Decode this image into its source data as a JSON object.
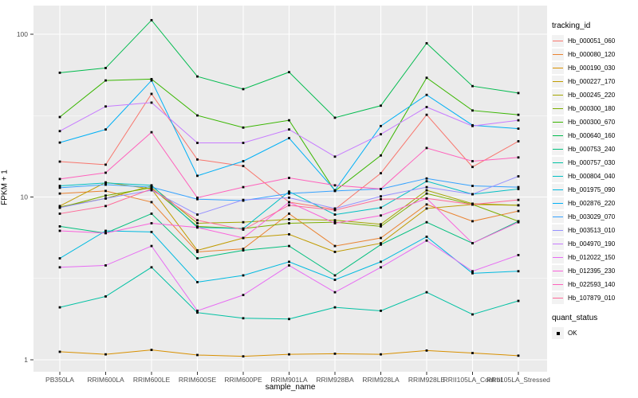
{
  "axes": {
    "y_label": "FPKM + 1",
    "x_label": "sample_name",
    "y_tick_labels": [
      "100",
      "10",
      "1"
    ],
    "y_tick_values": [
      100,
      10,
      1
    ],
    "y_minor_values": [
      3.1623,
      31.623
    ],
    "panel_bg": "#EBEBEB",
    "grid_color": "#FFFFFF",
    "tick_text_color": "#4D4D4D"
  },
  "legend": {
    "tracking_title": "tracking_id",
    "quant_title": "quant_status",
    "quant_ok_label": "OK",
    "quant_ok_shape": "filled-square",
    "quant_ok_color": "#000000"
  },
  "chart_data": {
    "type": "line",
    "title": "",
    "xlabel": "sample_name",
    "ylabel": "FPKM + 1",
    "y_scale": "log10",
    "ylim": [
      0.84,
      150
    ],
    "grid": true,
    "legend_position": "right",
    "point_shape": "filled-square",
    "point_color": "#000000",
    "quant_status_all": "OK",
    "categories": [
      "PB350LA",
      "RRIM600LA",
      "RRIM600LE",
      "RRIM600SE",
      "RRIM600PE",
      "RRIM901LA",
      "RRIM928BA",
      "RRIM928LA",
      "RRIM928LE",
      "RRII105LA_Control",
      "RRII105LA_Stressed"
    ],
    "series": [
      {
        "name": "Hb_000051_060",
        "color": "#F8766D",
        "values": [
          16.5,
          15.8,
          43,
          17,
          15.5,
          9.3,
          8.4,
          14,
          32,
          15.3,
          22
        ]
      },
      {
        "name": "Hb_000080_120",
        "color": "#EA8331",
        "values": [
          10.5,
          10.9,
          9.3,
          4.6,
          4.8,
          7.9,
          5.0,
          5.6,
          9.0,
          7.1,
          8.2
        ]
      },
      {
        "name": "Hb_000190_030",
        "color": "#D89000",
        "values": [
          1.12,
          1.08,
          1.15,
          1.07,
          1.05,
          1.08,
          1.09,
          1.08,
          1.14,
          1.1,
          1.06
        ]
      },
      {
        "name": "Hb_000227_170",
        "color": "#C09B00",
        "values": [
          8.8,
          12.3,
          11.2,
          4.7,
          5.6,
          5.9,
          4.6,
          5.2,
          8.5,
          9.0,
          8.9
        ]
      },
      {
        "name": "Hb_000245_220",
        "color": "#A3A500",
        "values": [
          8.7,
          9.8,
          11.7,
          6.9,
          7.0,
          7.3,
          7.2,
          6.8,
          11.0,
          9.1,
          8.9
        ]
      },
      {
        "name": "Hb_000300_180",
        "color": "#7CAE00",
        "values": [
          8.6,
          10.2,
          11.4,
          6.6,
          6.4,
          6.9,
          7.0,
          6.6,
          10.5,
          9.0,
          7.1
        ]
      },
      {
        "name": "Hb_000300_670",
        "color": "#39B600",
        "values": [
          31,
          52,
          53,
          31.7,
          26.7,
          29.6,
          10.9,
          18,
          54,
          34,
          32
        ]
      },
      {
        "name": "Hb_000640_160",
        "color": "#00BB4E",
        "values": [
          58,
          62,
          122,
          55,
          46,
          58.5,
          30.7,
          36.4,
          88,
          48,
          43.5
        ]
      },
      {
        "name": "Hb_000753_240",
        "color": "#00BF7D",
        "values": [
          6.6,
          6.0,
          7.9,
          4.2,
          4.7,
          5.0,
          3.3,
          5.1,
          7.0,
          5.2,
          7.1
        ]
      },
      {
        "name": "Hb_000757_030",
        "color": "#00C1A3",
        "values": [
          2.1,
          2.45,
          3.7,
          1.95,
          1.8,
          1.78,
          2.1,
          2.0,
          2.6,
          1.9,
          2.3
        ]
      },
      {
        "name": "Hb_000804_040",
        "color": "#00BFC4",
        "values": [
          11.7,
          12.2,
          11.8,
          6.5,
          6.4,
          10.8,
          7.8,
          8.6,
          12.5,
          10.4,
          11.2
        ]
      },
      {
        "name": "Hb_001975_090",
        "color": "#00BAE0",
        "values": [
          4.2,
          6.2,
          6.1,
          3.0,
          3.3,
          4.0,
          3.1,
          4.0,
          5.7,
          3.4,
          3.5
        ]
      },
      {
        "name": "Hb_002876_220",
        "color": "#00B0F6",
        "values": [
          21.6,
          26,
          52,
          13.5,
          16.6,
          23,
          11,
          27.3,
          42.4,
          27.6,
          26.3
        ]
      },
      {
        "name": "Hb_003029_070",
        "color": "#35A2FF",
        "values": [
          11.4,
          11.9,
          11.5,
          9.7,
          9.5,
          10.5,
          10.9,
          11.2,
          13.0,
          11.7,
          11.5
        ]
      },
      {
        "name": "Hb_003513_010",
        "color": "#9590FF",
        "values": [
          8.6,
          9.8,
          11.0,
          7.8,
          9.6,
          9.9,
          8.5,
          10.1,
          11.5,
          10.4,
          13.4
        ]
      },
      {
        "name": "Hb_004970_190",
        "color": "#C77CFF",
        "values": [
          25.4,
          36,
          38,
          21.5,
          21.5,
          26,
          17.7,
          24.3,
          35.7,
          27.3,
          29.6
        ]
      },
      {
        "name": "Hb_012022_150",
        "color": "#E76BF3",
        "values": [
          3.7,
          3.8,
          5.0,
          2.0,
          2.5,
          3.8,
          2.6,
          3.7,
          5.4,
          3.5,
          4.4
        ]
      },
      {
        "name": "Hb_012395_230",
        "color": "#FA62DB",
        "values": [
          6.2,
          6.0,
          6.9,
          6.5,
          5.6,
          9.3,
          6.9,
          7.7,
          9.8,
          5.2,
          7.0
        ]
      },
      {
        "name": "Hb_022593_140",
        "color": "#FF62BC",
        "values": [
          12.9,
          14.1,
          25,
          9.9,
          11.5,
          13.1,
          11.8,
          11.2,
          20,
          16.6,
          17.5
        ]
      },
      {
        "name": "Hb_107879_010",
        "color": "#FF6A98",
        "values": [
          7.9,
          8.8,
          11.2,
          7.2,
          6.3,
          8.9,
          8.3,
          9.7,
          9.8,
          9.0,
          9.6
        ]
      }
    ]
  }
}
